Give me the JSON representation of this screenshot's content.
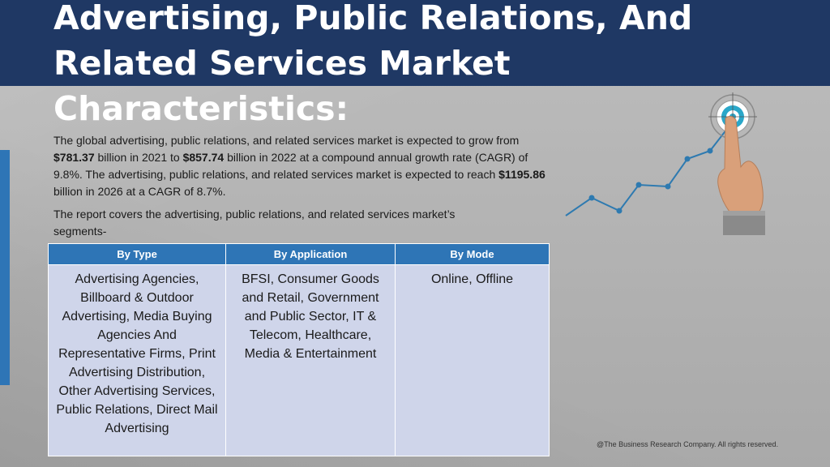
{
  "title": {
    "line1": "Advertising, Public Relations, And",
    "line2": "Related Services Market Characteristics:"
  },
  "intro": {
    "p1": "The global advertising, public relations, and related services market is expected to grow from ",
    "v1": "$781.37",
    "p2": " billion in 2021 to ",
    "v2": "$857.74",
    "p3": " billion in 2022 at a compound annual growth rate (CAGR) of 9.8%. The advertising, public relations, and related services market is expected to reach ",
    "v3": "$1195.86",
    "p4": " billion in 2026 at a CAGR of 8.7%."
  },
  "report_text": "The report covers the advertising, public relations, and related services market’s segments-",
  "table": {
    "headers": [
      "By Type",
      "By Application",
      "By Mode"
    ],
    "cells": [
      "Advertising Agencies, Billboard & Outdoor Advertising, Media Buying Agencies And Representative Firms, Print Advertising Distribution, Other Advertising Services, Public Relations, Direct Mail Advertising",
      "BFSI, Consumer Goods and Retail, Government and Public Sector, IT & Telecom, Healthcare, Media & Entertainment",
      "Online, Offline"
    ]
  },
  "footer": "@The Business Research Company. All rights reserved.",
  "graphic": {
    "icons": [
      "trend-line-icon",
      "target-icon",
      "pointing-hand-icon"
    ],
    "colors": {
      "line": "#2e7ab0",
      "target": "#2aa7c9"
    }
  }
}
